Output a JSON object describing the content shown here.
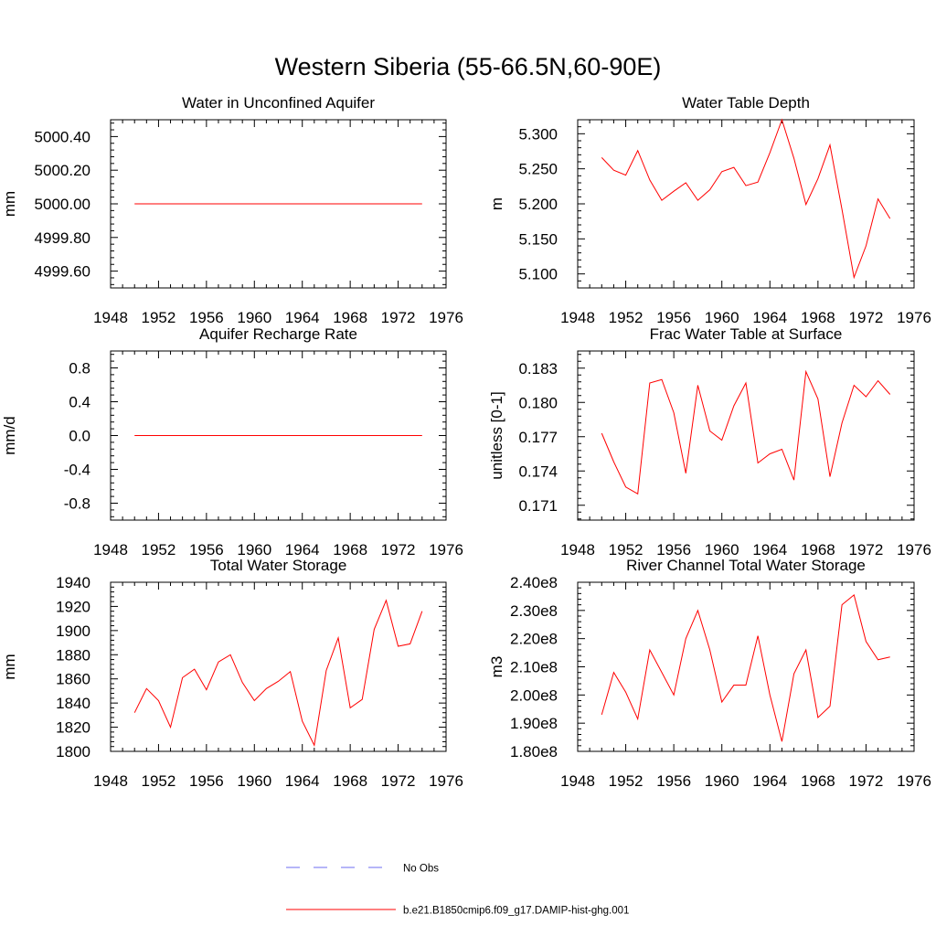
{
  "figure": {
    "title": "Western Siberia (55-66.5N,60-90E)"
  },
  "legend": {
    "obs_label": "No Obs",
    "obs_color": "#6e6ef0",
    "model_label": "b.e21.B1850cmip6.f09_g17.DAMIP-hist-ghg.001",
    "model_color": "#ff0000"
  },
  "chart_data": [
    {
      "type": "line",
      "title": "Water in Unconfined Aquifer",
      "ylabel": "mm",
      "xlim": [
        1948,
        1976
      ],
      "ylim": [
        4999.5,
        5000.5
      ],
      "xticks": [
        "1948",
        "1952",
        "1956",
        "1960",
        "1964",
        "1968",
        "1972",
        "1976"
      ],
      "yticks": [
        {
          "value": 4999.6,
          "label": "4999.60"
        },
        {
          "value": 4999.8,
          "label": "4999.80"
        },
        {
          "value": 5000.0,
          "label": "5000.00"
        },
        {
          "value": 5000.2,
          "label": "5000.20"
        },
        {
          "value": 5000.4,
          "label": "5000.40"
        }
      ],
      "x": [
        1950,
        1951,
        1952,
        1953,
        1954,
        1955,
        1956,
        1957,
        1958,
        1959,
        1960,
        1961,
        1962,
        1963,
        1964,
        1965,
        1966,
        1967,
        1968,
        1969,
        1970,
        1971,
        1972,
        1973,
        1974
      ],
      "y": [
        5000,
        5000,
        5000,
        5000,
        5000,
        5000,
        5000,
        5000,
        5000,
        5000,
        5000,
        5000,
        5000,
        5000,
        5000,
        5000,
        5000,
        5000,
        5000,
        5000,
        5000,
        5000,
        5000,
        5000,
        5000
      ]
    },
    {
      "type": "line",
      "title": "Water Table Depth",
      "ylabel": "m",
      "xlim": [
        1948,
        1976
      ],
      "ylim": [
        5.08,
        5.32
      ],
      "xticks": [
        "1948",
        "1952",
        "1956",
        "1960",
        "1964",
        "1968",
        "1972",
        "1976"
      ],
      "yticks": [
        {
          "value": 5.1,
          "label": "5.100"
        },
        {
          "value": 5.15,
          "label": "5.150"
        },
        {
          "value": 5.2,
          "label": "5.200"
        },
        {
          "value": 5.25,
          "label": "5.250"
        },
        {
          "value": 5.3,
          "label": "5.300"
        }
      ],
      "x": [
        1950,
        1951,
        1952,
        1953,
        1954,
        1955,
        1956,
        1957,
        1958,
        1959,
        1960,
        1961,
        1962,
        1963,
        1964,
        1965,
        1966,
        1967,
        1968,
        1969,
        1970,
        1971,
        1972,
        1973,
        1974
      ],
      "y": [
        5.266,
        5.248,
        5.241,
        5.276,
        5.234,
        5.205,
        5.218,
        5.23,
        5.205,
        5.22,
        5.246,
        5.252,
        5.226,
        5.231,
        5.273,
        5.32,
        5.265,
        5.199,
        5.236,
        5.284,
        5.192,
        5.095,
        5.14,
        5.207,
        5.179
      ]
    },
    {
      "type": "line",
      "title": "Aquifer Recharge Rate",
      "ylabel": "mm/d",
      "xlim": [
        1948,
        1976
      ],
      "ylim": [
        -1.0,
        1.0
      ],
      "xticks": [
        "1948",
        "1952",
        "1956",
        "1960",
        "1964",
        "1968",
        "1972",
        "1976"
      ],
      "yticks": [
        {
          "value": -0.8,
          "label": "-0.8"
        },
        {
          "value": -0.4,
          "label": "-0.4"
        },
        {
          "value": 0.0,
          "label": "0.0"
        },
        {
          "value": 0.4,
          "label": "0.4"
        },
        {
          "value": 0.8,
          "label": "0.8"
        }
      ],
      "x": [
        1950,
        1951,
        1952,
        1953,
        1954,
        1955,
        1956,
        1957,
        1958,
        1959,
        1960,
        1961,
        1962,
        1963,
        1964,
        1965,
        1966,
        1967,
        1968,
        1969,
        1970,
        1971,
        1972,
        1973,
        1974
      ],
      "y": [
        0,
        0,
        0,
        0,
        0,
        0,
        0,
        0,
        0,
        0,
        0,
        0,
        0,
        0,
        0,
        0,
        0,
        0,
        0,
        0,
        0,
        0,
        0,
        0,
        0
      ]
    },
    {
      "type": "line",
      "title": "Frac Water Table at Surface",
      "ylabel": "unitless [0-1]",
      "xlim": [
        1948,
        1976
      ],
      "ylim": [
        0.1697,
        0.1845
      ],
      "xticks": [
        "1948",
        "1952",
        "1956",
        "1960",
        "1964",
        "1968",
        "1972",
        "1976"
      ],
      "yticks": [
        {
          "value": 0.171,
          "label": "0.171"
        },
        {
          "value": 0.174,
          "label": "0.174"
        },
        {
          "value": 0.177,
          "label": "0.177"
        },
        {
          "value": 0.18,
          "label": "0.180"
        },
        {
          "value": 0.183,
          "label": "0.183"
        }
      ],
      "x": [
        1950,
        1951,
        1952,
        1953,
        1954,
        1955,
        1956,
        1957,
        1958,
        1959,
        1960,
        1961,
        1962,
        1963,
        1964,
        1965,
        1966,
        1967,
        1968,
        1969,
        1970,
        1971,
        1972,
        1973,
        1974
      ],
      "y": [
        0.1773,
        0.1748,
        0.1726,
        0.172,
        0.1817,
        0.182,
        0.1791,
        0.1738,
        0.1815,
        0.1775,
        0.1767,
        0.1797,
        0.1817,
        0.1747,
        0.1755,
        0.1759,
        0.1732,
        0.1827,
        0.1803,
        0.1735,
        0.1782,
        0.1815,
        0.1805,
        0.1819,
        0.1807
      ]
    },
    {
      "type": "line",
      "title": "Total Water Storage",
      "ylabel": "mm",
      "xlim": [
        1948,
        1976
      ],
      "ylim": [
        1800,
        1940
      ],
      "xticks": [
        "1948",
        "1952",
        "1956",
        "1960",
        "1964",
        "1968",
        "1972",
        "1976"
      ],
      "yticks": [
        {
          "value": 1800,
          "label": "1800"
        },
        {
          "value": 1820,
          "label": "1820"
        },
        {
          "value": 1840,
          "label": "1840"
        },
        {
          "value": 1860,
          "label": "1860"
        },
        {
          "value": 1880,
          "label": "1880"
        },
        {
          "value": 1900,
          "label": "1900"
        },
        {
          "value": 1920,
          "label": "1920"
        },
        {
          "value": 1940,
          "label": "1940"
        }
      ],
      "x": [
        1950,
        1951,
        1952,
        1953,
        1954,
        1955,
        1956,
        1957,
        1958,
        1959,
        1960,
        1961,
        1962,
        1963,
        1964,
        1965,
        1966,
        1967,
        1968,
        1969,
        1970,
        1971,
        1972,
        1973,
        1974
      ],
      "y": [
        1832,
        1852,
        1842,
        1820,
        1861,
        1868,
        1851,
        1874,
        1880,
        1857,
        1842,
        1852,
        1858,
        1866,
        1825,
        1805,
        1867,
        1894,
        1836,
        1843,
        1901,
        1925,
        1887,
        1889,
        1916
      ]
    },
    {
      "type": "line",
      "title": "River Channel Total Water Storage",
      "ylabel": "m3",
      "xlim": [
        1948,
        1976
      ],
      "ylim": [
        180000000,
        240000000
      ],
      "xticks": [
        "1948",
        "1952",
        "1956",
        "1960",
        "1964",
        "1968",
        "1972",
        "1976"
      ],
      "yticks": [
        {
          "value": 180000000,
          "label": "1.80e8"
        },
        {
          "value": 190000000,
          "label": "1.90e8"
        },
        {
          "value": 200000000,
          "label": "2.00e8"
        },
        {
          "value": 210000000,
          "label": "2.10e8"
        },
        {
          "value": 220000000,
          "label": "2.20e8"
        },
        {
          "value": 230000000,
          "label": "2.30e8"
        },
        {
          "value": 240000000,
          "label": "2.40e8"
        }
      ],
      "x": [
        1950,
        1951,
        1952,
        1953,
        1954,
        1955,
        1956,
        1957,
        1958,
        1959,
        1960,
        1961,
        1962,
        1963,
        1964,
        1965,
        1966,
        1967,
        1968,
        1969,
        1970,
        1971,
        1972,
        1973,
        1974
      ],
      "y": [
        193000000,
        208000000,
        201000000,
        191500000,
        216000000,
        208000000,
        200000000,
        220000000,
        230000000,
        216000000,
        197500000,
        203500000,
        203500000,
        221000000,
        200000000,
        183500000,
        207500000,
        216000000,
        192000000,
        196000000,
        232000000,
        235500000,
        219000000,
        212500000,
        213500000
      ]
    }
  ]
}
